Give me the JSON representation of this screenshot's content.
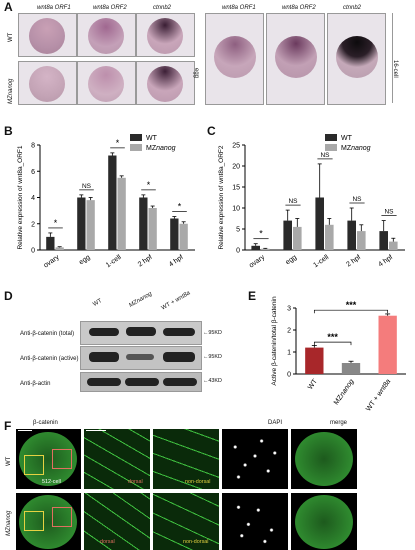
{
  "panels": {
    "A": "A",
    "B": "B",
    "C": "C",
    "D": "D",
    "E": "E",
    "F": "F"
  },
  "panelA": {
    "col_headers_left": [
      "wnt8a ORF1",
      "wnt8a ORF2",
      "ctnnb2"
    ],
    "col_headers_right": [
      "wnt8a ORF1",
      "wnt8a ORF2",
      "ctnnb2"
    ],
    "row_labels": [
      "WT",
      "MZnanog"
    ],
    "stage_left": "egg",
    "stage_right": "16-cell"
  },
  "chart_B": {
    "type": "bar",
    "ylabel": "Relative expression of wnt8a_ORF1",
    "categories": [
      "ovary",
      "egg",
      "1-cell",
      "2 hpf",
      "4 hpf"
    ],
    "yticks": [
      "0",
      "2",
      "4",
      "6",
      "8"
    ],
    "ylim": [
      0,
      8
    ],
    "series": [
      {
        "name": "WT",
        "values": [
          1.0,
          4.0,
          7.2,
          4.0,
          2.4
        ],
        "err": [
          0.3,
          0.2,
          0.2,
          0.2,
          0.15
        ],
        "color": "#2a2a2a"
      },
      {
        "name": "MZnanog",
        "values": [
          0.2,
          3.8,
          5.5,
          3.2,
          2.0
        ],
        "err": [
          0.05,
          0.2,
          0.15,
          0.15,
          0.15
        ],
        "color": "#a9a9a9"
      }
    ],
    "significance": [
      "*",
      "NS",
      "*",
      "*",
      "*"
    ],
    "legend": [
      "WT",
      "MZnanog"
    ]
  },
  "chart_C": {
    "type": "bar",
    "ylabel": "Relative expression of wnt8a_ORF2",
    "categories": [
      "ovary",
      "egg",
      "1-cell",
      "2 hpf",
      "4 hpf"
    ],
    "yticks": [
      "0",
      "5",
      "10",
      "15",
      "20",
      "25"
    ],
    "ylim": [
      0,
      25
    ],
    "series": [
      {
        "name": "WT",
        "values": [
          1.0,
          7.0,
          12.5,
          7.0,
          4.5
        ],
        "err": [
          0.5,
          2.5,
          8.0,
          3.0,
          2.5
        ],
        "color": "#2a2a2a"
      },
      {
        "name": "MZnanog",
        "values": [
          0.3,
          5.5,
          6.0,
          4.5,
          2.0
        ],
        "err": [
          0.1,
          2.0,
          1.5,
          1.5,
          0.8
        ],
        "color": "#a9a9a9"
      }
    ],
    "significance": [
      "*",
      "NS",
      "NS",
      "NS",
      "NS"
    ],
    "legend": [
      "WT",
      "MZnanog"
    ]
  },
  "panelD": {
    "col_labels": [
      "WT",
      "MZnanog",
      "WT + wnt8a"
    ],
    "row_labels": [
      "Anti-β-catenin (total)",
      "Anti-β-catenin (active)",
      "Anti-β-actin"
    ],
    "markers": [
      "95KD",
      "95KD",
      "43KD"
    ]
  },
  "chart_E": {
    "type": "bar",
    "ylabel": "Active β-catenin/total β-catenin",
    "categories": [
      "WT",
      "MZnanog",
      "WT + wnt8a"
    ],
    "values": [
      1.2,
      0.5,
      2.65
    ],
    "err": [
      0.1,
      0.08,
      0.08
    ],
    "colors": [
      "#a8272a",
      "#888888",
      "#f47c7c"
    ],
    "yticks": [
      "0",
      "1",
      "2",
      "3"
    ],
    "ylim": [
      0,
      3
    ],
    "significance": [
      "***",
      "***"
    ]
  },
  "panelF": {
    "col_labels": [
      "β-catenin",
      "DAPI",
      "merge"
    ],
    "row_labels": [
      "WT",
      "MZnanog"
    ],
    "stage": "512-cell",
    "region_labels": [
      "dorsal",
      "non-dorsal",
      "dorsal",
      "non-dorsal"
    ],
    "colors": {
      "green": "#3fbf3f",
      "dorsal": "#e07060",
      "nondorsal": "#e0d040"
    }
  }
}
